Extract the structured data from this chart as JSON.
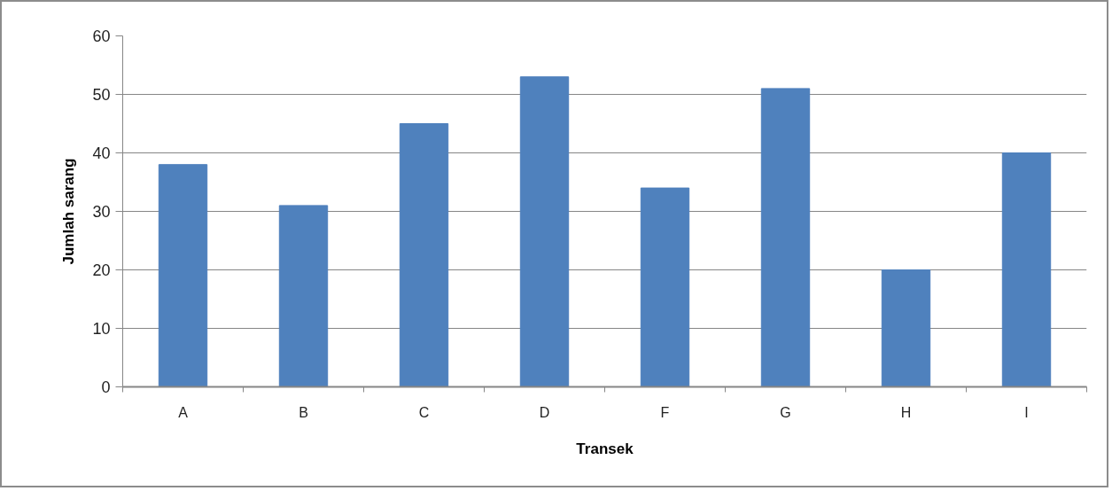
{
  "chart_data": {
    "type": "bar",
    "xlabel": "Transek",
    "ylabel": "Jumlah sarang",
    "categories": [
      "A",
      "B",
      "C",
      "D",
      "F",
      "G",
      "H",
      "I"
    ],
    "values": [
      38,
      31,
      45,
      53,
      34,
      51,
      20,
      40
    ],
    "color": "#4f81bd",
    "ylim": [
      0,
      60
    ],
    "yticks": [
      0,
      10,
      20,
      30,
      40,
      50,
      60
    ],
    "grid": "y"
  }
}
